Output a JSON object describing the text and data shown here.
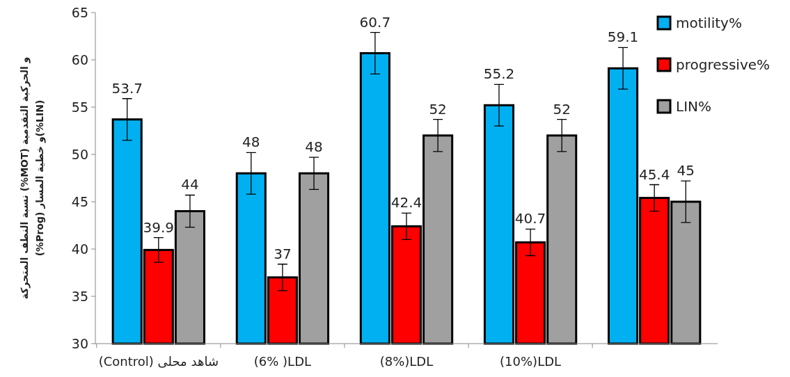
{
  "chart_data": {
    "type": "bar",
    "ylabel": "نسبة النطف المتحركة (%MOT) و الحركية التقدمية\n(%Prog) و خطية المسار(%LIN)",
    "categories": [
      "(Control) شاهد محلى",
      "(6% )LDL",
      "(8%)LDL",
      "(10%)LDL",
      null
    ],
    "series": [
      {
        "name": "motility%",
        "color": "#00b0f0",
        "values": [
          53.7,
          48,
          60.7,
          55.2,
          59.1
        ],
        "errors": [
          2.2,
          2.2,
          2.2,
          2.2,
          2.2
        ]
      },
      {
        "name": "progressive%",
        "color": "#ff0000",
        "values": [
          39.9,
          37,
          42.4,
          40.7,
          45.4
        ],
        "errors": [
          1.3,
          1.4,
          1.4,
          1.4,
          1.4
        ]
      },
      {
        "name": "LIN%",
        "color": "#a0a0a0",
        "values": [
          44,
          48,
          52,
          52,
          45
        ],
        "errors": [
          1.7,
          1.7,
          1.7,
          1.7,
          2.2
        ]
      }
    ],
    "ylim": [
      30,
      65
    ],
    "yticks": [
      30,
      35,
      40,
      45,
      50,
      55,
      60,
      65
    ],
    "data_labels": true,
    "legend": "top right",
    "grid": false
  }
}
